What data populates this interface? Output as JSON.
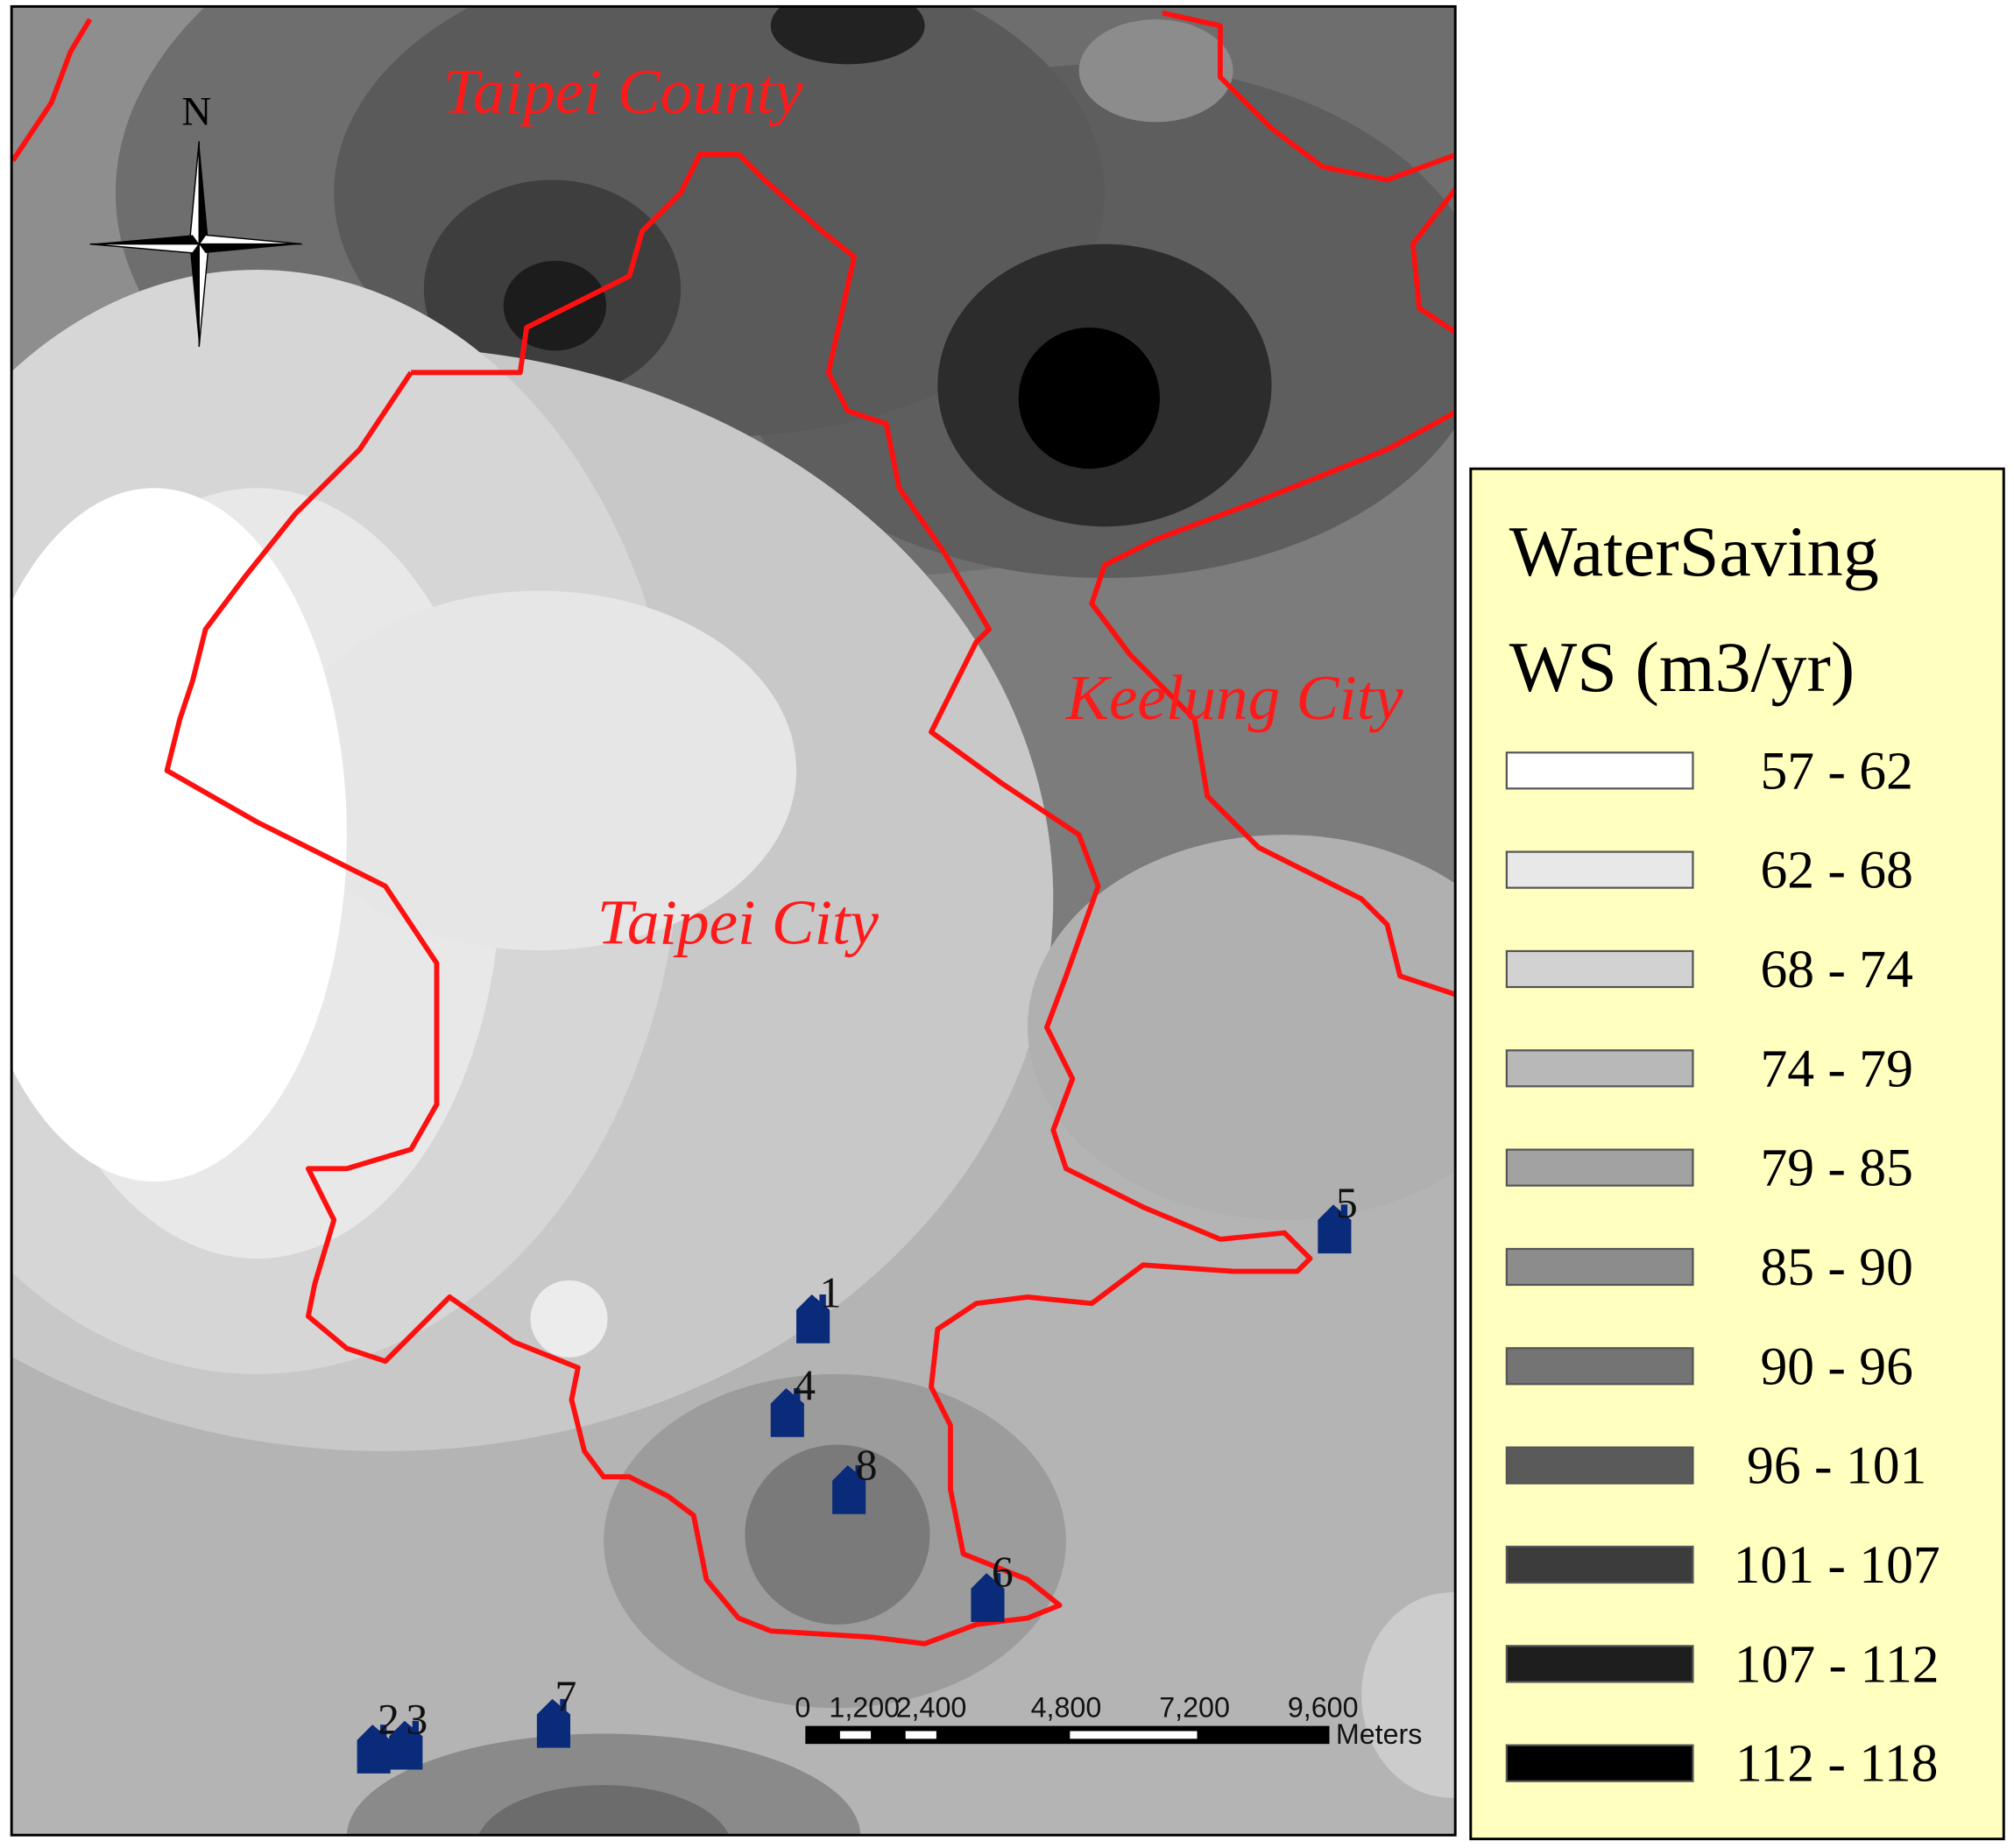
{
  "map": {
    "north": "N",
    "regions": [
      "Taipei County",
      "Taipei City",
      "Keelung City"
    ],
    "sites": [
      "1",
      "2",
      "3",
      "4",
      "5",
      "6",
      "7",
      "8"
    ],
    "scale_bar": {
      "ticks": [
        "0",
        "1,200",
        "2,400",
        "4,800",
        "7,200",
        "9,600"
      ],
      "unit": "Meters"
    },
    "legend": {
      "title": "WaterSaving",
      "subtitle": "WS (m3/yr)",
      "classes": [
        {
          "label": "57 -  62",
          "color": "#ffffff"
        },
        {
          "label": "62 -  68",
          "color": "#e8e8e8"
        },
        {
          "label": "68 - 74",
          "color": "#d2d2d2"
        },
        {
          "label": "74 -  79",
          "color": "#b8b8b8"
        },
        {
          "label": "79 -  85",
          "color": "#a2a2a2"
        },
        {
          "label": "85 -  90",
          "color": "#8c8c8c"
        },
        {
          "label": "90 -  96",
          "color": "#747474"
        },
        {
          "label": "96 - 101",
          "color": "#5a5a5a"
        },
        {
          "label": "101 - 107",
          "color": "#3c3c3c"
        },
        {
          "label": "107 - 112",
          "color": "#1e1e1e"
        },
        {
          "label": "112 - 118",
          "color": "#000000"
        }
      ]
    }
  }
}
